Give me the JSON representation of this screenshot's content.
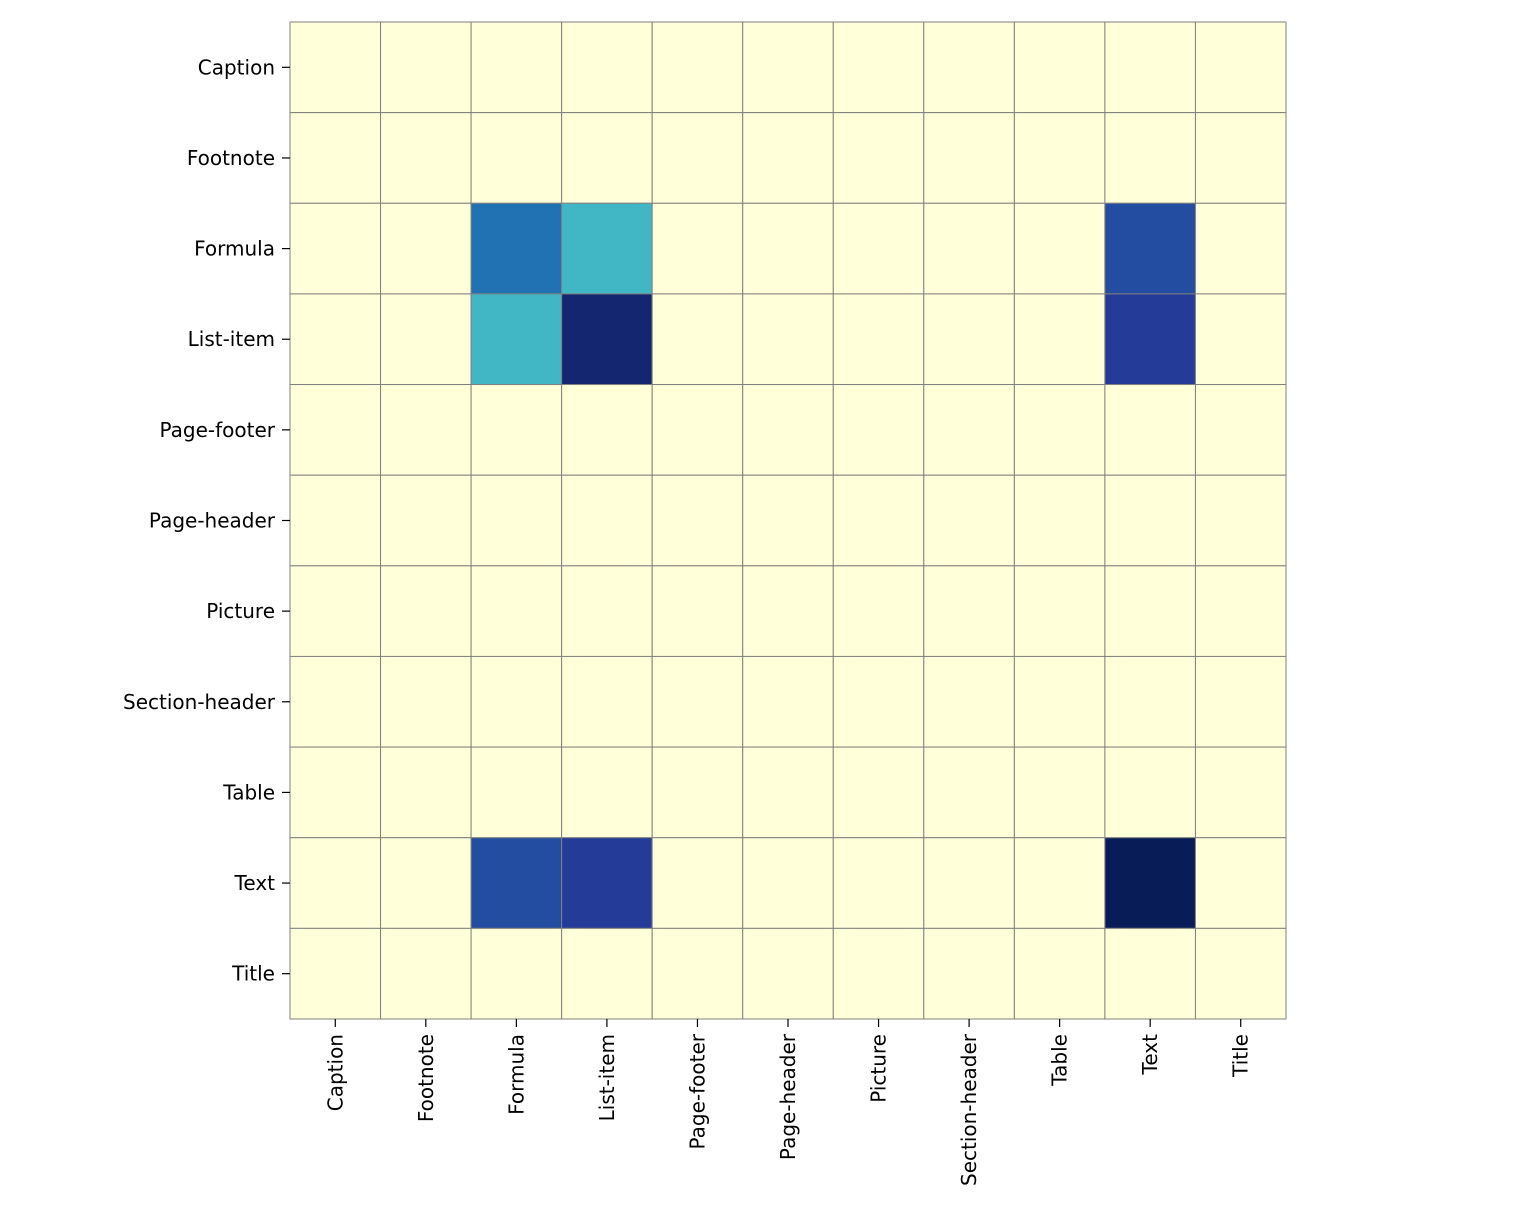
{
  "chart_data": {
    "type": "heatmap",
    "title": "",
    "xlabel": "",
    "ylabel": "",
    "x_categories": [
      "Caption",
      "Footnote",
      "Formula",
      "List-item",
      "Page-footer",
      "Page-header",
      "Picture",
      "Section-header",
      "Table",
      "Text",
      "Title"
    ],
    "y_categories": [
      "Caption",
      "Footnote",
      "Formula",
      "List-item",
      "Page-footer",
      "Page-header",
      "Picture",
      "Section-header",
      "Table",
      "Text",
      "Title"
    ],
    "values": [
      [
        0,
        0,
        0,
        0,
        0,
        0,
        0,
        0,
        0,
        0,
        0
      ],
      [
        0,
        0,
        0,
        0,
        0,
        0,
        0,
        0,
        0,
        0,
        0
      ],
      [
        0,
        0,
        0.7,
        0.5,
        0,
        0,
        0,
        0,
        0,
        0.8,
        0
      ],
      [
        0,
        0,
        0.5,
        0.95,
        0,
        0,
        0,
        0,
        0,
        0.85,
        0
      ],
      [
        0,
        0,
        0,
        0,
        0,
        0,
        0,
        0,
        0,
        0,
        0
      ],
      [
        0,
        0,
        0,
        0,
        0,
        0,
        0,
        0,
        0,
        0,
        0
      ],
      [
        0,
        0,
        0,
        0,
        0,
        0,
        0,
        0,
        0,
        0,
        0
      ],
      [
        0,
        0,
        0,
        0,
        0,
        0,
        0,
        0,
        0,
        0,
        0
      ],
      [
        0,
        0,
        0,
        0,
        0,
        0,
        0,
        0,
        0,
        0,
        0
      ],
      [
        0,
        0,
        0.8,
        0.85,
        0,
        0,
        0,
        0,
        0,
        1.0,
        0
      ],
      [
        0,
        0,
        0,
        0,
        0,
        0,
        0,
        0,
        0,
        0,
        0
      ]
    ],
    "colormap": "YlGnBu",
    "grid_color": "#808080",
    "colorbar": false,
    "x_tick_rotation": 90
  }
}
